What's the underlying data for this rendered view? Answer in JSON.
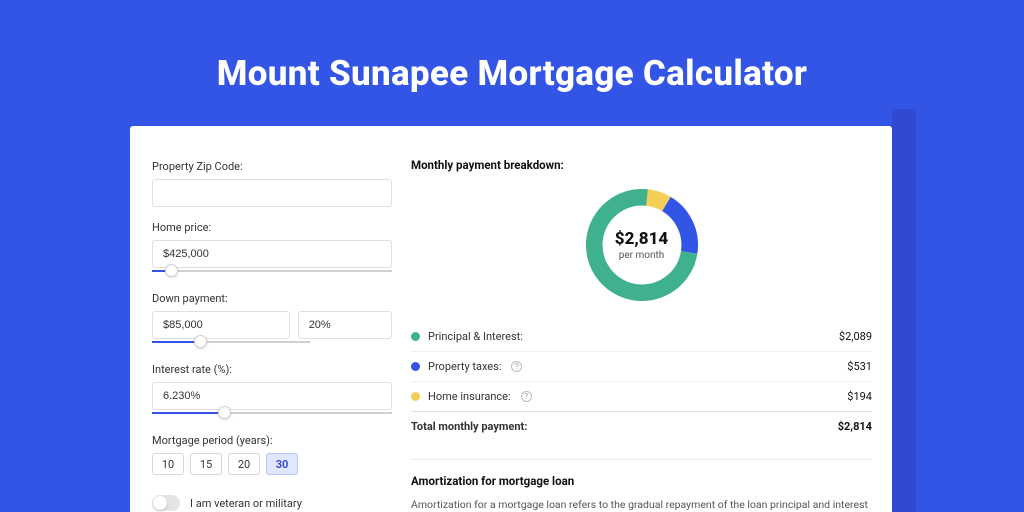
{
  "page": {
    "title": "Mount Sunapee Mortgage Calculator",
    "bg_color": "#3355e6",
    "accent_color": "#2f4ad0",
    "card_bg": "#ffffff"
  },
  "form": {
    "zip": {
      "label": "Property Zip Code:",
      "value": ""
    },
    "home_price": {
      "label": "Home price:",
      "value": "$425,000",
      "slider_percent": 8
    },
    "down_payment": {
      "label": "Down payment:",
      "value": "$85,000",
      "percent": "20%",
      "slider_percent": 20
    },
    "interest": {
      "label": "Interest rate (%):",
      "value": "6.230%",
      "slider_percent": 30
    },
    "period": {
      "label": "Mortgage period (years):",
      "options": [
        "10",
        "15",
        "20",
        "30"
      ],
      "active_index": 3
    },
    "veteran": {
      "label": "I am veteran or military",
      "on": false
    }
  },
  "breakdown": {
    "title": "Monthly payment breakdown:",
    "center_amount": "$2,814",
    "center_sub": "per month",
    "donut": {
      "type": "donut",
      "ring_width": 16,
      "bg": "#ffffff",
      "slices": [
        {
          "label": "Principal & Interest:",
          "value": "$2,089",
          "percent": 74.2,
          "color": "#3fb18f"
        },
        {
          "label": "Property taxes:",
          "value": "$531",
          "percent": 18.9,
          "color": "#3355e6",
          "help": true
        },
        {
          "label": "Home insurance:",
          "value": "$194",
          "percent": 6.9,
          "color": "#f3cf57",
          "help": true
        }
      ]
    },
    "total": {
      "label": "Total monthly payment:",
      "value": "$2,814"
    }
  },
  "amortization": {
    "title": "Amortization for mortgage loan",
    "body": "Amortization for a mortgage loan refers to the gradual repayment of the loan principal and interest over a specified"
  }
}
